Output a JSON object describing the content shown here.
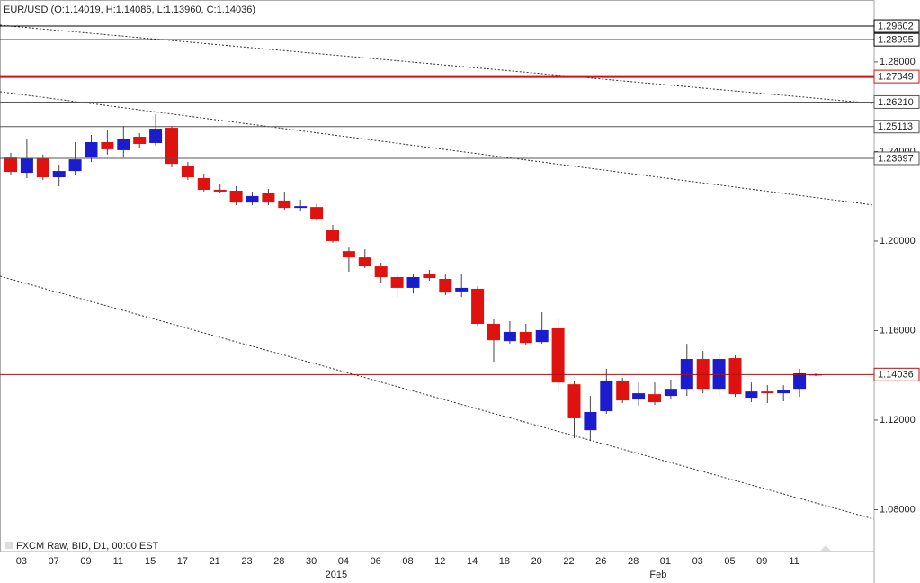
{
  "chart_data": {
    "type": "candlestick",
    "title": "EUR/USD (O:1.14019, H:1.14086, L:1.13960, C:1.14036)",
    "footer": "FXCM Raw, BID, D1, 00:00 EST",
    "categories": [
      null,
      "03",
      null,
      "07",
      null,
      "09",
      null,
      "11",
      null,
      "15",
      null,
      "17",
      null,
      "21",
      null,
      "23",
      null,
      "28",
      null,
      "30",
      null,
      "04",
      null,
      "06",
      null,
      "08",
      null,
      "12",
      null,
      "14",
      null,
      "18",
      null,
      "20",
      null,
      "22",
      null,
      "26",
      null,
      "28",
      null,
      "01",
      null,
      "03",
      null,
      "05",
      null,
      "09",
      null,
      "11",
      null
    ],
    "x_group_labels": [
      {
        "at": 21,
        "label": "2015"
      },
      {
        "at": 41,
        "label": "Feb"
      }
    ],
    "open": [
      1.2373,
      1.2305,
      1.2369,
      1.2285,
      1.2313,
      1.2373,
      1.2442,
      1.2406,
      1.2466,
      1.2438,
      1.2506,
      1.2337,
      1.2281,
      1.2229,
      1.2225,
      1.2172,
      1.2217,
      1.2181,
      1.2148,
      1.2152,
      1.2048,
      1.1955,
      1.1927,
      1.1887,
      1.1839,
      1.1791,
      1.1851,
      1.1831,
      1.1775,
      1.1787,
      1.163,
      1.1553,
      1.1594,
      1.1549,
      1.161,
      1.136,
      1.1155,
      1.124,
      1.1377,
      1.1292,
      1.1316,
      1.1308,
      1.134,
      1.1473,
      1.134,
      1.1477,
      1.13,
      1.1328,
      1.132,
      1.134,
      1.14019
    ],
    "high": [
      1.2394,
      1.2454,
      1.2386,
      1.2341,
      1.2442,
      1.2474,
      1.2494,
      1.2514,
      1.2482,
      1.2566,
      1.2514,
      1.2353,
      1.2301,
      1.2253,
      1.2245,
      1.2221,
      1.2233,
      1.2221,
      1.2185,
      1.2164,
      1.2072,
      1.1971,
      1.1963,
      1.1903,
      1.1851,
      1.1851,
      1.1871,
      1.1851,
      1.1851,
      1.1799,
      1.165,
      1.1642,
      1.163,
      1.1682,
      1.165,
      1.1373,
      1.1308,
      1.1429,
      1.1389,
      1.1368,
      1.1368,
      1.1381,
      1.1541,
      1.1509,
      1.1497,
      1.1489,
      1.1368,
      1.1356,
      1.1356,
      1.1429,
      1.14086
    ],
    "low": [
      1.2293,
      1.2281,
      1.2273,
      1.2245,
      1.2293,
      1.2353,
      1.2386,
      1.2373,
      1.2414,
      1.2426,
      1.2329,
      1.2273,
      1.2221,
      1.2213,
      1.216,
      1.216,
      1.216,
      1.214,
      1.2132,
      1.2092,
      1.1992,
      1.1863,
      1.1879,
      1.1811,
      1.175,
      1.1766,
      1.1823,
      1.1758,
      1.175,
      1.1622,
      1.1461,
      1.1541,
      1.1537,
      1.1541,
      1.1328,
      1.1119,
      1.1107,
      1.1228,
      1.1276,
      1.1264,
      1.1268,
      1.1296,
      1.1308,
      1.132,
      1.1308,
      1.1304,
      1.128,
      1.1276,
      1.1284,
      1.1304,
      1.1396
    ],
    "close": [
      1.2309,
      1.2369,
      1.2285,
      1.2313,
      1.2365,
      1.2442,
      1.241,
      1.2454,
      1.2434,
      1.2502,
      1.2345,
      1.2285,
      1.2229,
      1.2221,
      1.2172,
      1.2201,
      1.2172,
      1.2148,
      1.2156,
      1.21,
      1.2,
      1.1927,
      1.1887,
      1.1839,
      1.1791,
      1.1839,
      1.1835,
      1.177,
      1.1791,
      1.163,
      1.1557,
      1.1594,
      1.1545,
      1.1602,
      1.1368,
      1.1208,
      1.1236,
      1.1377,
      1.1288,
      1.132,
      1.128,
      1.134,
      1.1473,
      1.134,
      1.1473,
      1.1316,
      1.1328,
      1.132,
      1.1336,
      1.1409,
      1.14036
    ],
    "up_color": "#1c1ccf",
    "down_color": "#e0120f",
    "ylim": [
      1.0613,
      1.3077
    ],
    "yticks": [
      {
        "value": 1.08,
        "label": "1.08000"
      },
      {
        "value": 1.12,
        "label": "1.12000"
      },
      {
        "value": 1.16,
        "label": "1.16000"
      },
      {
        "value": 1.2,
        "label": "1.20000"
      },
      {
        "value": 1.24,
        "label": "1.24000"
      },
      {
        "value": 1.28,
        "label": "1.28000"
      }
    ],
    "hlines": [
      {
        "value": 1.29602,
        "color": "#000000"
      },
      {
        "value": 1.28995,
        "color": "#000000"
      },
      {
        "value": 1.27349,
        "color": "#d01010",
        "thick": true
      },
      {
        "value": 1.2621,
        "label": "1.26210",
        "color": "#555555"
      },
      {
        "value": 1.25113,
        "color": "#555555"
      },
      {
        "value": 1.23697,
        "color": "#555555"
      }
    ],
    "current_price": 1.14036,
    "current_price_color": "#b01010"
  }
}
